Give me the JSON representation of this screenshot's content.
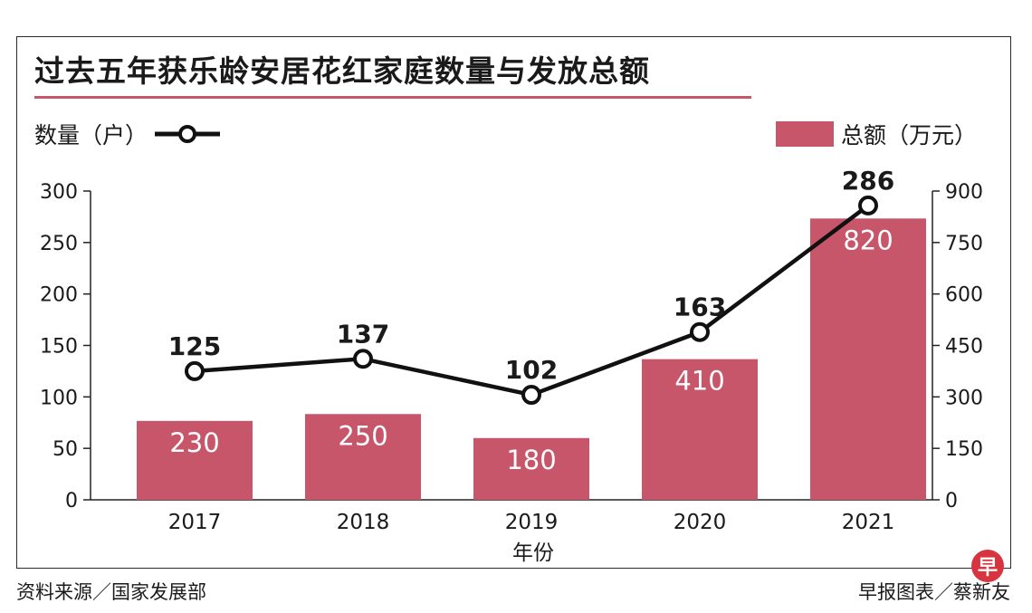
{
  "title": "过去五年获乐龄安居花红家庭数量与发放总额",
  "legend": {
    "left_label": "数量（户）",
    "right_label": "总额（万元）"
  },
  "footer": {
    "source": "资料来源／国家发展部",
    "credit": "早报图表／蔡新友",
    "logo_text": "早"
  },
  "colors": {
    "bar": "#c8566a",
    "line": "#111111",
    "accent": "#c8566a"
  },
  "chart_data": {
    "type": "bar",
    "title": "过去五年获乐龄安居花红家庭数量与发放总额",
    "xlabel": "年份",
    "categories": [
      "2017",
      "2018",
      "2019",
      "2020",
      "2021"
    ],
    "series": [
      {
        "name": "总额（万元）",
        "type": "bar",
        "axis": "right",
        "values": [
          230,
          250,
          180,
          410,
          820
        ]
      },
      {
        "name": "数量（户）",
        "type": "line",
        "axis": "left",
        "values": [
          125,
          137,
          102,
          163,
          286
        ]
      }
    ],
    "left_axis": {
      "label": "数量（户）",
      "ylim": [
        0,
        300
      ],
      "ticks": [
        0,
        50,
        100,
        150,
        200,
        250,
        300
      ]
    },
    "right_axis": {
      "label": "总额（万元）",
      "ylim": [
        0,
        900
      ],
      "ticks": [
        0,
        150,
        300,
        450,
        600,
        750,
        900
      ]
    }
  }
}
